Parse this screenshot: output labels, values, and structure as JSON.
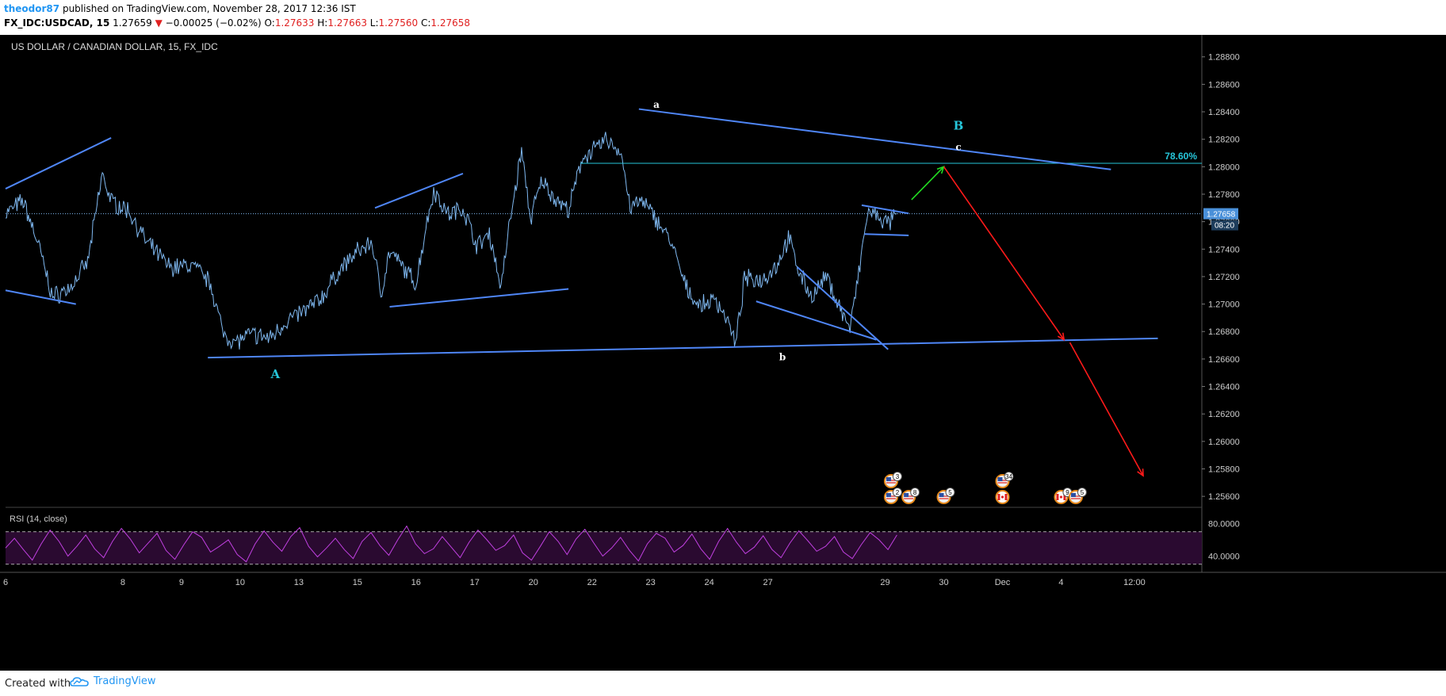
{
  "header": {
    "author": "theodor87",
    "published": "published on TradingView.com, November 28, 2017 12:36 IST",
    "symbol": "FX_IDC:USDCAD, 15",
    "last": "1.27659",
    "change": "−0.00025 (−0.02%)",
    "o_label": "O:",
    "o_val": "1.27633",
    "h_label": "H:",
    "h_val": "1.27663",
    "l_label": "L:",
    "l_val": "1.27560",
    "c_label": "C:",
    "c_val": "1.27658"
  },
  "chart_data": {
    "type": "line",
    "title": "US DOLLAR / CANADIAN DOLLAR, 15, FX_IDC",
    "ylim": [
      1.2552,
      1.2896
    ],
    "y_ticks": [
      "1.28800",
      "1.28600",
      "1.28400",
      "1.28200",
      "1.28000",
      "1.27800",
      "1.27600",
      "1.27400",
      "1.27200",
      "1.27000",
      "1.26800",
      "1.26600",
      "1.26400",
      "1.26200",
      "1.26000",
      "1.25800",
      "1.25600"
    ],
    "x_ticks": [
      "6",
      "8",
      "9",
      "10",
      "13",
      "15",
      "16",
      "17",
      "20",
      "22",
      "23",
      "24",
      "27",
      "29",
      "30",
      "Dec",
      "4",
      "12:00"
    ],
    "x_tick_pos": [
      0,
      2,
      3,
      4,
      5,
      6,
      7,
      8,
      9,
      10,
      11,
      12,
      13,
      15,
      16,
      17,
      18,
      19.25
    ],
    "x_lim": [
      0,
      20.4
    ],
    "price_key": [
      [
        0.0,
        1.2766
      ],
      [
        0.3,
        1.2775
      ],
      [
        0.55,
        1.2745
      ],
      [
        0.8,
        1.2705
      ],
      [
        1.1,
        1.2712
      ],
      [
        1.4,
        1.273
      ],
      [
        1.65,
        1.2795
      ],
      [
        1.8,
        1.2775
      ],
      [
        2.1,
        1.2768
      ],
      [
        2.4,
        1.2745
      ],
      [
        2.8,
        1.2727
      ],
      [
        3.2,
        1.2728
      ],
      [
        3.5,
        1.2715
      ],
      [
        3.7,
        1.268
      ],
      [
        3.9,
        1.2672
      ],
      [
        4.2,
        1.2678
      ],
      [
        4.5,
        1.2675
      ],
      [
        4.8,
        1.2688
      ],
      [
        5.1,
        1.2695
      ],
      [
        5.4,
        1.2705
      ],
      [
        5.7,
        1.2725
      ],
      [
        6.0,
        1.2738
      ],
      [
        6.25,
        1.2745
      ],
      [
        6.4,
        1.2708
      ],
      [
        6.55,
        1.2738
      ],
      [
        6.75,
        1.2728
      ],
      [
        7.0,
        1.2715
      ],
      [
        7.15,
        1.2752
      ],
      [
        7.3,
        1.2783
      ],
      [
        7.55,
        1.2765
      ],
      [
        7.8,
        1.277
      ],
      [
        8.05,
        1.2742
      ],
      [
        8.25,
        1.2752
      ],
      [
        8.45,
        1.2712
      ],
      [
        8.6,
        1.276
      ],
      [
        8.8,
        1.2812
      ],
      [
        8.95,
        1.2762
      ],
      [
        9.15,
        1.279
      ],
      [
        9.35,
        1.2778
      ],
      [
        9.6,
        1.2768
      ],
      [
        9.85,
        1.2808
      ],
      [
        10.05,
        1.2812
      ],
      [
        10.25,
        1.282
      ],
      [
        10.5,
        1.281
      ],
      [
        10.65,
        1.277
      ],
      [
        10.85,
        1.2775
      ],
      [
        11.1,
        1.2762
      ],
      [
        11.35,
        1.2745
      ],
      [
        11.6,
        1.2712
      ],
      [
        11.85,
        1.2698
      ],
      [
        12.1,
        1.2704
      ],
      [
        12.3,
        1.269
      ],
      [
        12.45,
        1.267
      ],
      [
        12.6,
        1.2718
      ],
      [
        12.9,
        1.2718
      ],
      [
        13.15,
        1.2728
      ],
      [
        13.35,
        1.2748
      ],
      [
        13.55,
        1.2722
      ],
      [
        13.75,
        1.2705
      ],
      [
        14.0,
        1.272
      ],
      [
        14.2,
        1.27
      ],
      [
        14.4,
        1.2682
      ],
      [
        14.55,
        1.2722
      ],
      [
        14.7,
        1.2767
      ],
      [
        14.9,
        1.2763
      ],
      [
        15.05,
        1.2758
      ],
      [
        15.2,
        1.2766
      ]
    ],
    "rsi": {
      "label": "RSI (14, close)",
      "ylim": [
        20,
        100
      ],
      "y_ticks": [
        "80.0000",
        "40.0000"
      ],
      "bands": [
        70,
        30
      ],
      "series": [
        50,
        62,
        48,
        35,
        55,
        72,
        58,
        40,
        52,
        66,
        49,
        38,
        58,
        74,
        61,
        44,
        56,
        68,
        47,
        36,
        54,
        70,
        63,
        45,
        52,
        60,
        42,
        33,
        55,
        71,
        57,
        46,
        64,
        75,
        52,
        39,
        50,
        62,
        48,
        37,
        58,
        69,
        53,
        41,
        60,
        77,
        55,
        43,
        49,
        64,
        51,
        38,
        57,
        72,
        60,
        47,
        53,
        66,
        44,
        35,
        52,
        70,
        58,
        42,
        61,
        73,
        56,
        40,
        50,
        63,
        47,
        34,
        55,
        68,
        62,
        45,
        53,
        67,
        49,
        36,
        58,
        74,
        57,
        43,
        51,
        65,
        48,
        38,
        56,
        71,
        59,
        46,
        52,
        64,
        45,
        37,
        54,
        69,
        60,
        48,
        66
      ]
    },
    "annotations": {
      "fib_label": "78.60%",
      "fib_level": 1.28025,
      "last_price": "1.27658",
      "last_price_val": 1.27658,
      "countdown": "08:20",
      "wave_A": "A",
      "wave_B": "B",
      "wave_a": "a",
      "wave_b": "b",
      "wave_c": "c"
    },
    "events": [
      {
        "label": "3",
        "x": 15.1,
        "row": 0,
        "flag": "us"
      },
      {
        "label": "2",
        "x": 15.1,
        "row": 1,
        "flag": "us"
      },
      {
        "label": "8",
        "x": 15.4,
        "row": 1,
        "flag": "us"
      },
      {
        "label": "5",
        "x": 16.0,
        "row": 1,
        "flag": "us"
      },
      {
        "label": "34",
        "x": 17.0,
        "row": 0,
        "flag": "us"
      },
      {
        "label": "",
        "x": 17.0,
        "row": 1,
        "flag": "ca"
      },
      {
        "label": "9",
        "x": 18.0,
        "row": 1,
        "flag": "ca"
      },
      {
        "label": "5",
        "x": 18.25,
        "row": 1,
        "flag": "us"
      }
    ]
  },
  "colors": {
    "background": "#000000",
    "price": "#7fb8f0",
    "trend": "#4f86f7",
    "fib": "#26c6da",
    "rsi": "#c040e0",
    "green_arrow": "#22dd22",
    "red_arrow": "#ff1a1a"
  },
  "footer": {
    "created": "Created with",
    "brand": "TradingView"
  }
}
